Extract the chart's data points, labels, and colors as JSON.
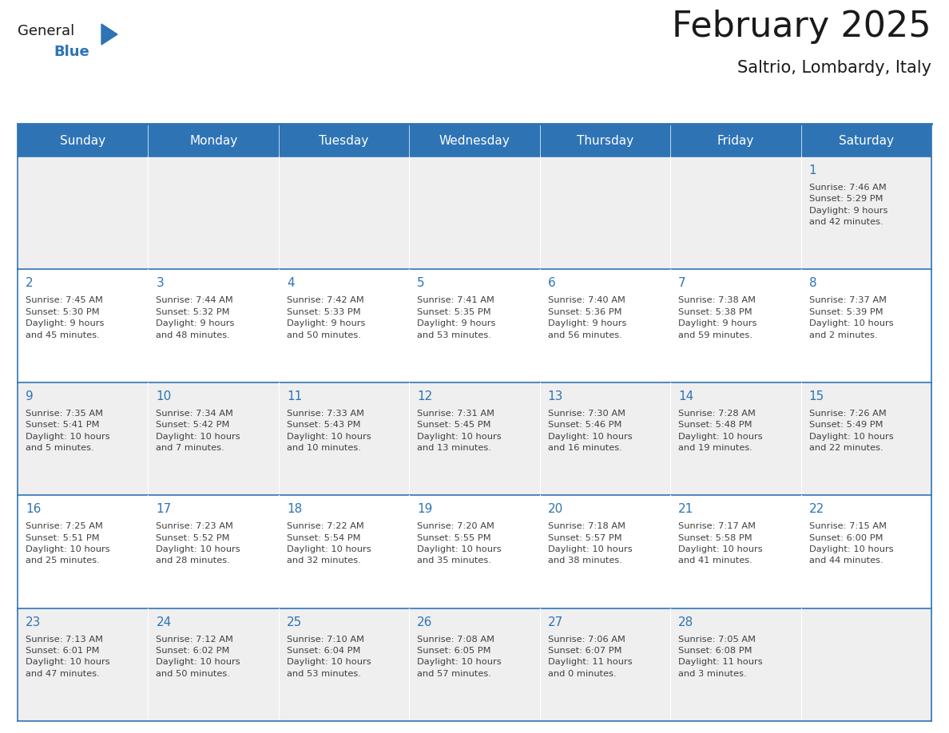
{
  "title": "February 2025",
  "subtitle": "Saltrio, Lombardy, Italy",
  "days_of_week": [
    "Sunday",
    "Monday",
    "Tuesday",
    "Wednesday",
    "Thursday",
    "Friday",
    "Saturday"
  ],
  "header_bg": "#2E74B5",
  "header_text": "#FFFFFF",
  "cell_bg_light": "#EFEFEF",
  "cell_bg_white": "#FFFFFF",
  "border_color": "#2E74B5",
  "day_number_color": "#2E74B5",
  "text_color": "#404040",
  "title_color": "#1a1a1a",
  "logo_general_color": "#1a1a1a",
  "logo_blue_color": "#2E74B5",
  "calendar_data": [
    [
      {
        "day": null,
        "info": ""
      },
      {
        "day": null,
        "info": ""
      },
      {
        "day": null,
        "info": ""
      },
      {
        "day": null,
        "info": ""
      },
      {
        "day": null,
        "info": ""
      },
      {
        "day": null,
        "info": ""
      },
      {
        "day": 1,
        "info": "Sunrise: 7:46 AM\nSunset: 5:29 PM\nDaylight: 9 hours\nand 42 minutes."
      }
    ],
    [
      {
        "day": 2,
        "info": "Sunrise: 7:45 AM\nSunset: 5:30 PM\nDaylight: 9 hours\nand 45 minutes."
      },
      {
        "day": 3,
        "info": "Sunrise: 7:44 AM\nSunset: 5:32 PM\nDaylight: 9 hours\nand 48 minutes."
      },
      {
        "day": 4,
        "info": "Sunrise: 7:42 AM\nSunset: 5:33 PM\nDaylight: 9 hours\nand 50 minutes."
      },
      {
        "day": 5,
        "info": "Sunrise: 7:41 AM\nSunset: 5:35 PM\nDaylight: 9 hours\nand 53 minutes."
      },
      {
        "day": 6,
        "info": "Sunrise: 7:40 AM\nSunset: 5:36 PM\nDaylight: 9 hours\nand 56 minutes."
      },
      {
        "day": 7,
        "info": "Sunrise: 7:38 AM\nSunset: 5:38 PM\nDaylight: 9 hours\nand 59 minutes."
      },
      {
        "day": 8,
        "info": "Sunrise: 7:37 AM\nSunset: 5:39 PM\nDaylight: 10 hours\nand 2 minutes."
      }
    ],
    [
      {
        "day": 9,
        "info": "Sunrise: 7:35 AM\nSunset: 5:41 PM\nDaylight: 10 hours\nand 5 minutes."
      },
      {
        "day": 10,
        "info": "Sunrise: 7:34 AM\nSunset: 5:42 PM\nDaylight: 10 hours\nand 7 minutes."
      },
      {
        "day": 11,
        "info": "Sunrise: 7:33 AM\nSunset: 5:43 PM\nDaylight: 10 hours\nand 10 minutes."
      },
      {
        "day": 12,
        "info": "Sunrise: 7:31 AM\nSunset: 5:45 PM\nDaylight: 10 hours\nand 13 minutes."
      },
      {
        "day": 13,
        "info": "Sunrise: 7:30 AM\nSunset: 5:46 PM\nDaylight: 10 hours\nand 16 minutes."
      },
      {
        "day": 14,
        "info": "Sunrise: 7:28 AM\nSunset: 5:48 PM\nDaylight: 10 hours\nand 19 minutes."
      },
      {
        "day": 15,
        "info": "Sunrise: 7:26 AM\nSunset: 5:49 PM\nDaylight: 10 hours\nand 22 minutes."
      }
    ],
    [
      {
        "day": 16,
        "info": "Sunrise: 7:25 AM\nSunset: 5:51 PM\nDaylight: 10 hours\nand 25 minutes."
      },
      {
        "day": 17,
        "info": "Sunrise: 7:23 AM\nSunset: 5:52 PM\nDaylight: 10 hours\nand 28 minutes."
      },
      {
        "day": 18,
        "info": "Sunrise: 7:22 AM\nSunset: 5:54 PM\nDaylight: 10 hours\nand 32 minutes."
      },
      {
        "day": 19,
        "info": "Sunrise: 7:20 AM\nSunset: 5:55 PM\nDaylight: 10 hours\nand 35 minutes."
      },
      {
        "day": 20,
        "info": "Sunrise: 7:18 AM\nSunset: 5:57 PM\nDaylight: 10 hours\nand 38 minutes."
      },
      {
        "day": 21,
        "info": "Sunrise: 7:17 AM\nSunset: 5:58 PM\nDaylight: 10 hours\nand 41 minutes."
      },
      {
        "day": 22,
        "info": "Sunrise: 7:15 AM\nSunset: 6:00 PM\nDaylight: 10 hours\nand 44 minutes."
      }
    ],
    [
      {
        "day": 23,
        "info": "Sunrise: 7:13 AM\nSunset: 6:01 PM\nDaylight: 10 hours\nand 47 minutes."
      },
      {
        "day": 24,
        "info": "Sunrise: 7:12 AM\nSunset: 6:02 PM\nDaylight: 10 hours\nand 50 minutes."
      },
      {
        "day": 25,
        "info": "Sunrise: 7:10 AM\nSunset: 6:04 PM\nDaylight: 10 hours\nand 53 minutes."
      },
      {
        "day": 26,
        "info": "Sunrise: 7:08 AM\nSunset: 6:05 PM\nDaylight: 10 hours\nand 57 minutes."
      },
      {
        "day": 27,
        "info": "Sunrise: 7:06 AM\nSunset: 6:07 PM\nDaylight: 11 hours\nand 0 minutes."
      },
      {
        "day": 28,
        "info": "Sunrise: 7:05 AM\nSunset: 6:08 PM\nDaylight: 11 hours\nand 3 minutes."
      },
      {
        "day": null,
        "info": ""
      }
    ]
  ]
}
